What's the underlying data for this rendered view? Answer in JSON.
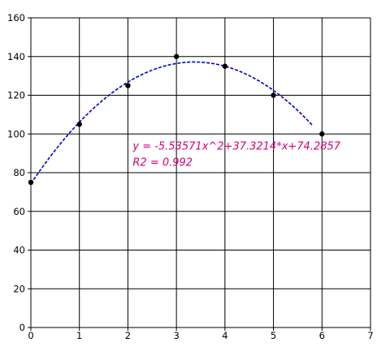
{
  "chart_data": {
    "type": "scatter",
    "title": "",
    "xlabel": "",
    "ylabel": "",
    "xlim": [
      0,
      7
    ],
    "ylim": [
      0,
      160
    ],
    "x_ticks": [
      0,
      1,
      2,
      3,
      4,
      5,
      6,
      7
    ],
    "y_ticks": [
      0,
      20,
      40,
      60,
      80,
      100,
      120,
      140,
      160
    ],
    "grid": true,
    "legend": "none",
    "series": [
      {
        "kind": "points",
        "color": "#000000",
        "x": [
          0,
          1,
          2,
          3,
          4,
          5,
          6
        ],
        "y": [
          75,
          105,
          125,
          140,
          135,
          120,
          100
        ]
      },
      {
        "kind": "trendline",
        "style": "dashed",
        "color": "#0000cc",
        "fit": "polynomial-2",
        "coefficients": {
          "a": -5.53571,
          "b": 37.3214,
          "c": 74.2857
        },
        "x_range": [
          0,
          5.8
        ]
      }
    ],
    "annotations": [
      {
        "text": "y = -5.53571x^2+37.3214*x+74.2857",
        "color": "#d4007a"
      },
      {
        "text": "R2 = 0.992",
        "color": "#d4007a"
      }
    ]
  }
}
